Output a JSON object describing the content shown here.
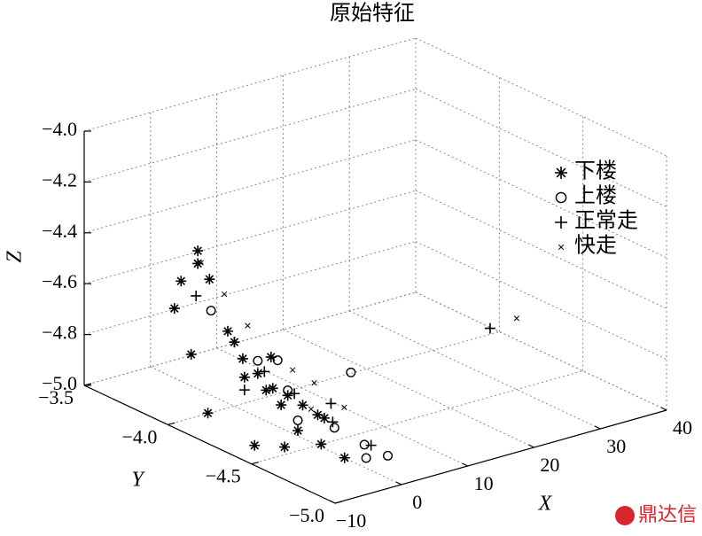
{
  "chart_data": {
    "type": "scatter3d",
    "title": "原始特征",
    "x_label": "X",
    "y_label": "Y",
    "z_label": "Z",
    "xlim": [
      -10,
      40
    ],
    "ylim": [
      -5,
      -3.5
    ],
    "zlim": [
      -5,
      -4
    ],
    "xticks": [
      {
        "value": -10,
        "label": "−10"
      },
      0,
      10,
      20,
      30,
      40
    ],
    "yticks": [
      {
        "value": -3.5,
        "label": "−3.5"
      },
      {
        "value": -4,
        "label": "−4.0"
      },
      {
        "value": -4.5,
        "label": "−4.5"
      },
      {
        "value": -5,
        "label": "−5.0"
      }
    ],
    "zticks": [
      {
        "value": -4,
        "label": "−4.0"
      },
      {
        "value": -4.2,
        "label": "−4.2"
      },
      {
        "value": -4.4,
        "label": "−4.4"
      },
      {
        "value": -4.6,
        "label": "−4.6"
      },
      {
        "value": -4.8,
        "label": "−4.8"
      },
      {
        "value": -5,
        "label": "−5.0"
      }
    ],
    "grid": true,
    "legend": "upper right",
    "series": [
      {
        "name": "下楼",
        "marker": "*",
        "color": "#000000",
        "x": [
          -8,
          -8,
          -7.5,
          -9,
          -6,
          -5,
          -4,
          -3,
          -2,
          -1,
          0,
          -4,
          -3,
          -6,
          -9,
          -9,
          -7,
          -5,
          -2,
          -1,
          -5,
          -8,
          -2,
          1,
          -3
        ],
        "y": [
          -4.1,
          -4.1,
          -4.15,
          -4.0,
          -4.2,
          -4.25,
          -4.3,
          -4.35,
          -4.4,
          -4.45,
          -4.5,
          -4.35,
          -4.4,
          -4.3,
          -4.1,
          -4.2,
          -4.4,
          -4.5,
          -4.6,
          -4.7,
          -4.2,
          -4.0,
          -4.3,
          -4.5,
          -4.5
        ],
        "z": [
          -4.3,
          -4.35,
          -4.4,
          -4.55,
          -4.6,
          -4.7,
          -4.75,
          -4.8,
          -4.82,
          -4.85,
          -4.88,
          -4.8,
          -4.85,
          -4.75,
          -4.7,
          -4.9,
          -4.98,
          -4.97,
          -4.95,
          -4.98,
          -4.65,
          -4.45,
          -4.7,
          -4.9,
          -4.92
        ]
      },
      {
        "name": "上楼",
        "marker": "o",
        "color": "#000000",
        "x": [
          -4,
          -2,
          0,
          2,
          3,
          -6,
          -1,
          5,
          1,
          -3
        ],
        "y": [
          -4.3,
          -4.4,
          -4.6,
          -4.7,
          -4.8,
          -4.1,
          -4.3,
          -4.5,
          -4.75,
          -4.5
        ],
        "z": [
          -4.7,
          -4.8,
          -4.9,
          -4.95,
          -4.97,
          -4.55,
          -4.72,
          -4.75,
          -4.98,
          -4.88
        ]
      },
      {
        "name": "正常走",
        "marker": "+",
        "color": "#000000",
        "x": [
          -7,
          -5,
          -3,
          -1,
          1,
          3,
          26,
          -6,
          2
        ],
        "y": [
          -4.05,
          -4.2,
          -4.3,
          -4.4,
          -4.55,
          -4.7,
          -4.5,
          -4.3,
          -4.5
        ],
        "z": [
          -4.5,
          -4.65,
          -4.75,
          -4.82,
          -4.9,
          -4.96,
          -4.73,
          -4.8,
          -4.85
        ]
      },
      {
        "name": "快走",
        "marker": "x",
        "color": "#000000",
        "x": [
          -5,
          -4,
          -3,
          -2,
          0,
          2,
          30,
          -1,
          4
        ],
        "y": [
          -4.0,
          -4.1,
          -4.2,
          -4.3,
          -4.35,
          -4.4,
          -4.5,
          -4.5,
          -4.5
        ],
        "z": [
          -4.4,
          -4.5,
          -4.6,
          -4.7,
          -4.75,
          -4.8,
          -4.72,
          -4.85,
          -4.88
        ]
      }
    ]
  },
  "watermark": "鼎达信"
}
